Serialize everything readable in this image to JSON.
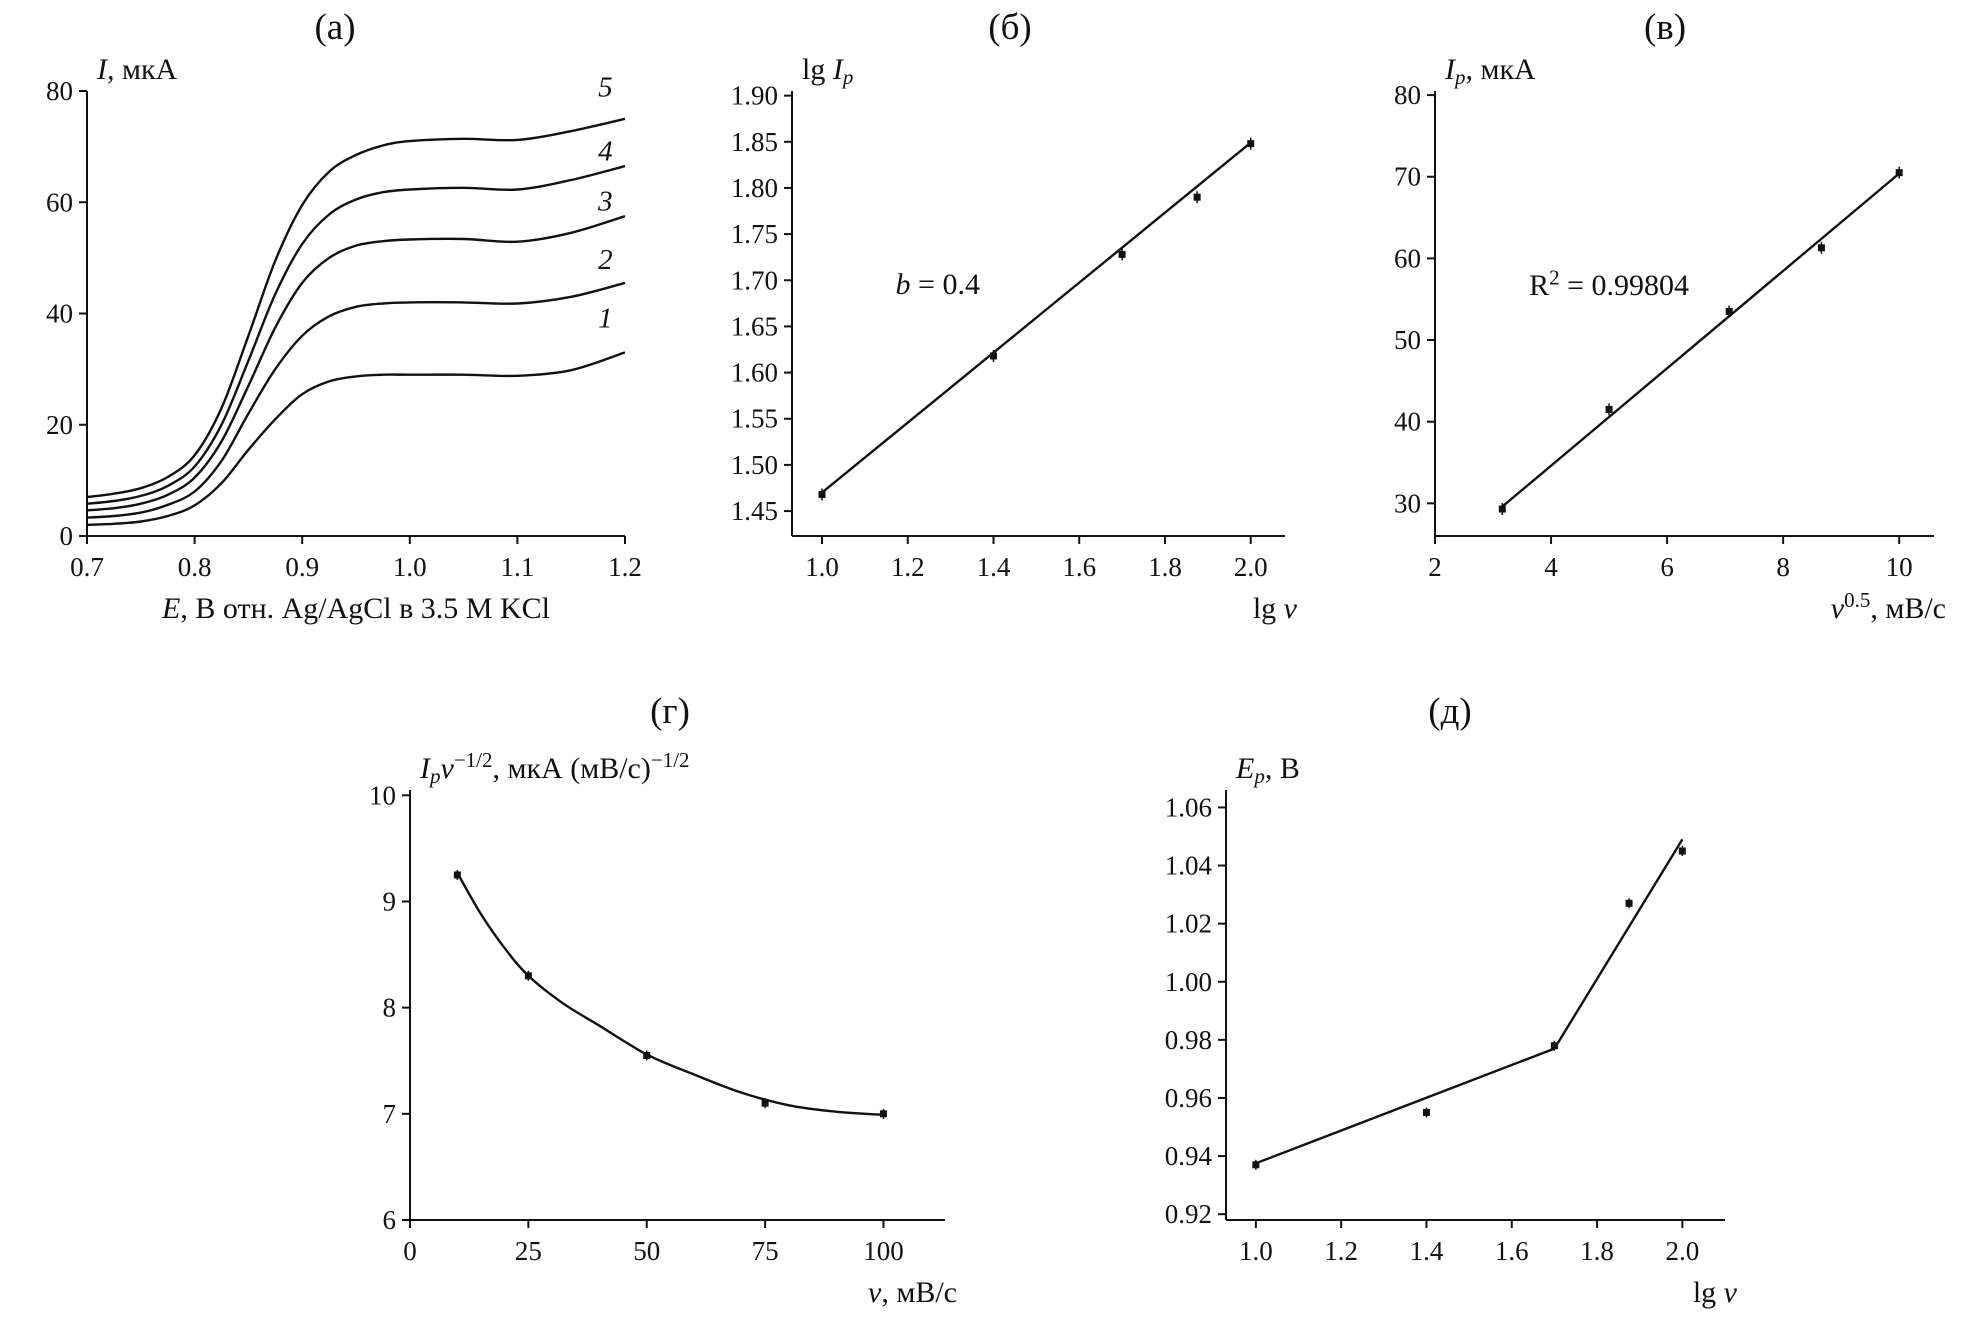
{
  "figure": {
    "background": "#ffffff",
    "line_color": "#111111",
    "panel_order": [
      "a",
      "b",
      "c",
      "g",
      "d"
    ]
  },
  "chart_data": [
    {
      "id": "a",
      "panel_label": "(а)",
      "type": "line",
      "ylabel_parts": [
        {
          "t": "I",
          "i": true
        },
        {
          "t": ", мкА"
        }
      ],
      "xlabel_parts": [
        {
          "t": "E",
          "i": true
        },
        {
          "t": ", В отн. Ag/AgCl в 3.5 М KCl"
        }
      ],
      "xlabel_align": "center",
      "xlim": [
        0.7,
        1.2
      ],
      "ylim": [
        0,
        80
      ],
      "xticks": [
        {
          "v": 0.7,
          "label": "0.7"
        },
        {
          "v": 0.8,
          "label": "0.8"
        },
        {
          "v": 0.9,
          "label": "0.9"
        },
        {
          "v": 1.0,
          "label": "1.0"
        },
        {
          "v": 1.1,
          "label": "1.1"
        },
        {
          "v": 1.2,
          "label": "1.2"
        }
      ],
      "yticks": [
        {
          "v": 0,
          "label": "0"
        },
        {
          "v": 20,
          "label": "20"
        },
        {
          "v": 40,
          "label": "40"
        },
        {
          "v": 60,
          "label": "60"
        },
        {
          "v": 80,
          "label": "80"
        }
      ],
      "series": [
        {
          "name": "voltammogram-1",
          "smooth": true,
          "marker": false,
          "points": [
            [
              0.7,
              2.0
            ],
            [
              0.725,
              2.2
            ],
            [
              0.75,
              2.6
            ],
            [
              0.775,
              3.6
            ],
            [
              0.8,
              5.5
            ],
            [
              0.825,
              9.5
            ],
            [
              0.85,
              15.5
            ],
            [
              0.875,
              21.0
            ],
            [
              0.9,
              25.5
            ],
            [
              0.925,
              27.8
            ],
            [
              0.95,
              28.7
            ],
            [
              0.975,
              29.0
            ],
            [
              1.0,
              29.0
            ],
            [
              1.05,
              29.0
            ],
            [
              1.1,
              28.8
            ],
            [
              1.15,
              29.8
            ],
            [
              1.2,
              33.0
            ]
          ]
        },
        {
          "name": "voltammogram-2",
          "smooth": true,
          "marker": false,
          "points": [
            [
              0.7,
              3.3
            ],
            [
              0.725,
              3.6
            ],
            [
              0.75,
              4.2
            ],
            [
              0.775,
              5.6
            ],
            [
              0.8,
              8.0
            ],
            [
              0.825,
              13.5
            ],
            [
              0.85,
              22.0
            ],
            [
              0.875,
              30.0
            ],
            [
              0.9,
              36.0
            ],
            [
              0.925,
              39.5
            ],
            [
              0.95,
              41.2
            ],
            [
              0.975,
              41.8
            ],
            [
              1.0,
              42.0
            ],
            [
              1.05,
              42.0
            ],
            [
              1.1,
              41.8
            ],
            [
              1.15,
              43.0
            ],
            [
              1.2,
              45.5
            ]
          ]
        },
        {
          "name": "voltammogram-3",
          "smooth": true,
          "marker": false,
          "points": [
            [
              0.7,
              4.6
            ],
            [
              0.725,
              5.0
            ],
            [
              0.75,
              5.8
            ],
            [
              0.775,
              7.4
            ],
            [
              0.8,
              10.5
            ],
            [
              0.825,
              17.0
            ],
            [
              0.85,
              27.0
            ],
            [
              0.875,
              37.5
            ],
            [
              0.9,
              45.5
            ],
            [
              0.925,
              50.0
            ],
            [
              0.95,
              52.2
            ],
            [
              0.975,
              53.0
            ],
            [
              1.0,
              53.3
            ],
            [
              1.05,
              53.4
            ],
            [
              1.1,
              52.9
            ],
            [
              1.15,
              54.5
            ],
            [
              1.2,
              57.5
            ]
          ]
        },
        {
          "name": "voltammogram-4",
          "smooth": true,
          "marker": false,
          "points": [
            [
              0.7,
              5.8
            ],
            [
              0.725,
              6.3
            ],
            [
              0.75,
              7.2
            ],
            [
              0.775,
              9.0
            ],
            [
              0.8,
              12.5
            ],
            [
              0.825,
              20.0
            ],
            [
              0.85,
              31.5
            ],
            [
              0.875,
              43.5
            ],
            [
              0.9,
              52.5
            ],
            [
              0.925,
              57.8
            ],
            [
              0.95,
              60.5
            ],
            [
              0.975,
              61.8
            ],
            [
              1.0,
              62.3
            ],
            [
              1.05,
              62.6
            ],
            [
              1.1,
              62.3
            ],
            [
              1.15,
              64.0
            ],
            [
              1.2,
              66.5
            ]
          ]
        },
        {
          "name": "voltammogram-5",
          "smooth": true,
          "marker": false,
          "points": [
            [
              0.7,
              7.0
            ],
            [
              0.725,
              7.6
            ],
            [
              0.75,
              8.6
            ],
            [
              0.775,
              10.6
            ],
            [
              0.8,
              14.5
            ],
            [
              0.825,
              23.0
            ],
            [
              0.85,
              36.0
            ],
            [
              0.875,
              49.5
            ],
            [
              0.9,
              59.5
            ],
            [
              0.925,
              65.5
            ],
            [
              0.95,
              68.5
            ],
            [
              0.975,
              70.2
            ],
            [
              1.0,
              71.0
            ],
            [
              1.05,
              71.4
            ],
            [
              1.1,
              71.2
            ],
            [
              1.15,
              72.8
            ],
            [
              1.2,
              75.0
            ]
          ]
        }
      ],
      "point_labels": [
        {
          "text": "1",
          "x": 1.175,
          "y": 37.5
        },
        {
          "text": "2",
          "x": 1.175,
          "y": 48.0
        },
        {
          "text": "3",
          "x": 1.175,
          "y": 58.5
        },
        {
          "text": "4",
          "x": 1.175,
          "y": 67.5
        },
        {
          "text": "5",
          "x": 1.175,
          "y": 79.0
        }
      ],
      "annotations": []
    },
    {
      "id": "b",
      "panel_label": "(б)",
      "type": "scatter",
      "ylabel_parts": [
        {
          "t": "lg "
        },
        {
          "t": "I",
          "i": true
        },
        {
          "t": "p",
          "i": true,
          "sub": true
        }
      ],
      "xlabel_parts": [
        {
          "t": "lg "
        },
        {
          "t": "v",
          "i": true
        }
      ],
      "xlabel_align": "right",
      "xlim": [
        0.93,
        2.08
      ],
      "ylim": [
        1.423,
        1.905
      ],
      "xticks": [
        {
          "v": 1.0,
          "label": "1.0"
        },
        {
          "v": 1.2,
          "label": "1.2"
        },
        {
          "v": 1.4,
          "label": "1.4"
        },
        {
          "v": 1.6,
          "label": "1.6"
        },
        {
          "v": 1.8,
          "label": "1.8"
        },
        {
          "v": 2.0,
          "label": "2.0"
        }
      ],
      "yticks": [
        {
          "v": 1.45,
          "label": "1.45"
        },
        {
          "v": 1.5,
          "label": "1.50"
        },
        {
          "v": 1.55,
          "label": "1.55"
        },
        {
          "v": 1.6,
          "label": "1.60"
        },
        {
          "v": 1.65,
          "label": "1.65"
        },
        {
          "v": 1.7,
          "label": "1.70"
        },
        {
          "v": 1.75,
          "label": "1.75"
        },
        {
          "v": 1.8,
          "label": "1.80"
        },
        {
          "v": 1.85,
          "label": "1.85"
        },
        {
          "v": 1.9,
          "label": "1.90"
        }
      ],
      "series": [
        {
          "name": "linear-fit",
          "marker": false,
          "points": [
            [
              1.0,
              1.47
            ],
            [
              2.0,
              1.849
            ]
          ]
        },
        {
          "name": "data-points",
          "line": false,
          "marker": true,
          "errorbar": 6,
          "points": [
            [
              1.0,
              1.468
            ],
            [
              1.4,
              1.618
            ],
            [
              1.7,
              1.728
            ],
            [
              1.875,
              1.79
            ],
            [
              2.0,
              1.848
            ]
          ]
        }
      ],
      "point_labels": [],
      "annotations": [
        {
          "parts": [
            {
              "t": "b",
              "i": true
            },
            {
              "t": " = 0.4"
            }
          ],
          "x": 1.27,
          "y": 1.685,
          "anchor": "middle"
        }
      ]
    },
    {
      "id": "c",
      "panel_label": "(в)",
      "type": "scatter",
      "ylabel_parts": [
        {
          "t": "I",
          "i": true
        },
        {
          "t": "p",
          "i": true,
          "sub": true
        },
        {
          "t": ", мкА"
        }
      ],
      "xlabel_parts": [
        {
          "t": "v",
          "i": true
        },
        {
          "t": "0.5",
          "sup": true
        },
        {
          "t": ", мВ/с"
        }
      ],
      "xlabel_align": "right",
      "xlim": [
        2,
        10.6
      ],
      "ylim": [
        26,
        80.5
      ],
      "xticks": [
        {
          "v": 2,
          "label": "2"
        },
        {
          "v": 4,
          "label": "4"
        },
        {
          "v": 6,
          "label": "6"
        },
        {
          "v": 8,
          "label": "8"
        },
        {
          "v": 10,
          "label": "10"
        }
      ],
      "yticks": [
        {
          "v": 30,
          "label": "30"
        },
        {
          "v": 40,
          "label": "40"
        },
        {
          "v": 50,
          "label": "50"
        },
        {
          "v": 60,
          "label": "60"
        },
        {
          "v": 70,
          "label": "70"
        },
        {
          "v": 80,
          "label": "80"
        }
      ],
      "series": [
        {
          "name": "linear-fit",
          "marker": false,
          "points": [
            [
              3.16,
              29.6
            ],
            [
              10.0,
              70.4
            ]
          ]
        },
        {
          "name": "data-points",
          "line": false,
          "marker": true,
          "errorbar": 6,
          "points": [
            [
              3.16,
              29.3
            ],
            [
              5.0,
              41.5
            ],
            [
              7.07,
              53.5
            ],
            [
              8.66,
              61.3
            ],
            [
              10.0,
              70.5
            ]
          ]
        }
      ],
      "point_labels": [],
      "annotations": [
        {
          "parts": [
            {
              "t": "R"
            },
            {
              "t": "2",
              "sup": true
            },
            {
              "t": " = 0.99804"
            }
          ],
          "x": 5.0,
          "y": 55.5,
          "anchor": "middle"
        }
      ]
    },
    {
      "id": "g",
      "panel_label": "(г)",
      "type": "scatter",
      "ylabel_parts": [
        {
          "t": "I",
          "i": true
        },
        {
          "t": "p",
          "i": true,
          "sub": true
        },
        {
          "t": "v",
          "i": true
        },
        {
          "t": "−1/2",
          "sup": true
        },
        {
          "t": ", мкА (мВ/с)"
        },
        {
          "t": "−1/2",
          "sup": true
        }
      ],
      "xlabel_parts": [
        {
          "t": "v",
          "i": true
        },
        {
          "t": ", мВ/с"
        }
      ],
      "xlabel_align": "right",
      "xlim": [
        0,
        113
      ],
      "ylim": [
        6,
        10.05
      ],
      "xticks": [
        {
          "v": 0,
          "label": "0"
        },
        {
          "v": 25,
          "label": "25"
        },
        {
          "v": 50,
          "label": "50"
        },
        {
          "v": 75,
          "label": "75"
        },
        {
          "v": 100,
          "label": "100"
        }
      ],
      "yticks": [
        {
          "v": 6,
          "label": "6"
        },
        {
          "v": 7,
          "label": "7"
        },
        {
          "v": 8,
          "label": "8"
        },
        {
          "v": 9,
          "label": "9"
        },
        {
          "v": 10,
          "label": "10"
        }
      ],
      "series": [
        {
          "name": "trend-curve",
          "smooth": true,
          "marker": false,
          "points": [
            [
              10,
              9.27
            ],
            [
              15,
              8.88
            ],
            [
              20,
              8.56
            ],
            [
              25,
              8.3
            ],
            [
              32,
              8.05
            ],
            [
              40,
              7.83
            ],
            [
              50,
              7.56
            ],
            [
              60,
              7.37
            ],
            [
              70,
              7.2
            ],
            [
              80,
              7.08
            ],
            [
              90,
              7.02
            ],
            [
              100,
              6.99
            ]
          ]
        },
        {
          "name": "data-points",
          "line": false,
          "marker": true,
          "errorbar": 5,
          "points": [
            [
              10,
              9.25
            ],
            [
              25,
              8.3
            ],
            [
              50,
              7.55
            ],
            [
              75,
              7.1
            ],
            [
              100,
              7.0
            ]
          ]
        }
      ],
      "point_labels": [],
      "annotations": []
    },
    {
      "id": "d",
      "panel_label": "(д)",
      "type": "scatter",
      "ylabel_parts": [
        {
          "t": "E",
          "i": true
        },
        {
          "t": "p",
          "i": true,
          "sub": true
        },
        {
          "t": ", В"
        }
      ],
      "xlabel_parts": [
        {
          "t": "lg "
        },
        {
          "t": "v",
          "i": true
        }
      ],
      "xlabel_align": "right",
      "xlim": [
        0.93,
        2.1
      ],
      "ylim": [
        0.918,
        1.066
      ],
      "xticks": [
        {
          "v": 1.0,
          "label": "1.0"
        },
        {
          "v": 1.2,
          "label": "1.2"
        },
        {
          "v": 1.4,
          "label": "1.4"
        },
        {
          "v": 1.6,
          "label": "1.6"
        },
        {
          "v": 1.8,
          "label": "1.8"
        },
        {
          "v": 2.0,
          "label": "2.0"
        }
      ],
      "yticks": [
        {
          "v": 0.92,
          "label": "0.92"
        },
        {
          "v": 0.94,
          "label": "0.94"
        },
        {
          "v": 0.96,
          "label": "0.96"
        },
        {
          "v": 0.98,
          "label": "0.98"
        },
        {
          "v": 1.0,
          "label": "1.00"
        },
        {
          "v": 1.02,
          "label": "1.02"
        },
        {
          "v": 1.04,
          "label": "1.04"
        },
        {
          "v": 1.06,
          "label": "1.06"
        }
      ],
      "series": [
        {
          "name": "fit-low-slope",
          "marker": false,
          "points": [
            [
              1.0,
              0.9375
            ],
            [
              1.7,
              0.977
            ]
          ]
        },
        {
          "name": "fit-high-slope",
          "marker": false,
          "points": [
            [
              1.7,
              0.977
            ],
            [
              2.0,
              1.049
            ]
          ]
        },
        {
          "name": "data-points",
          "line": false,
          "marker": true,
          "errorbar": 5,
          "points": [
            [
              1.0,
              0.937
            ],
            [
              1.4,
              0.955
            ],
            [
              1.7,
              0.978
            ],
            [
              1.875,
              1.027
            ],
            [
              2.0,
              1.045
            ]
          ]
        }
      ],
      "point_labels": [],
      "annotations": []
    }
  ]
}
